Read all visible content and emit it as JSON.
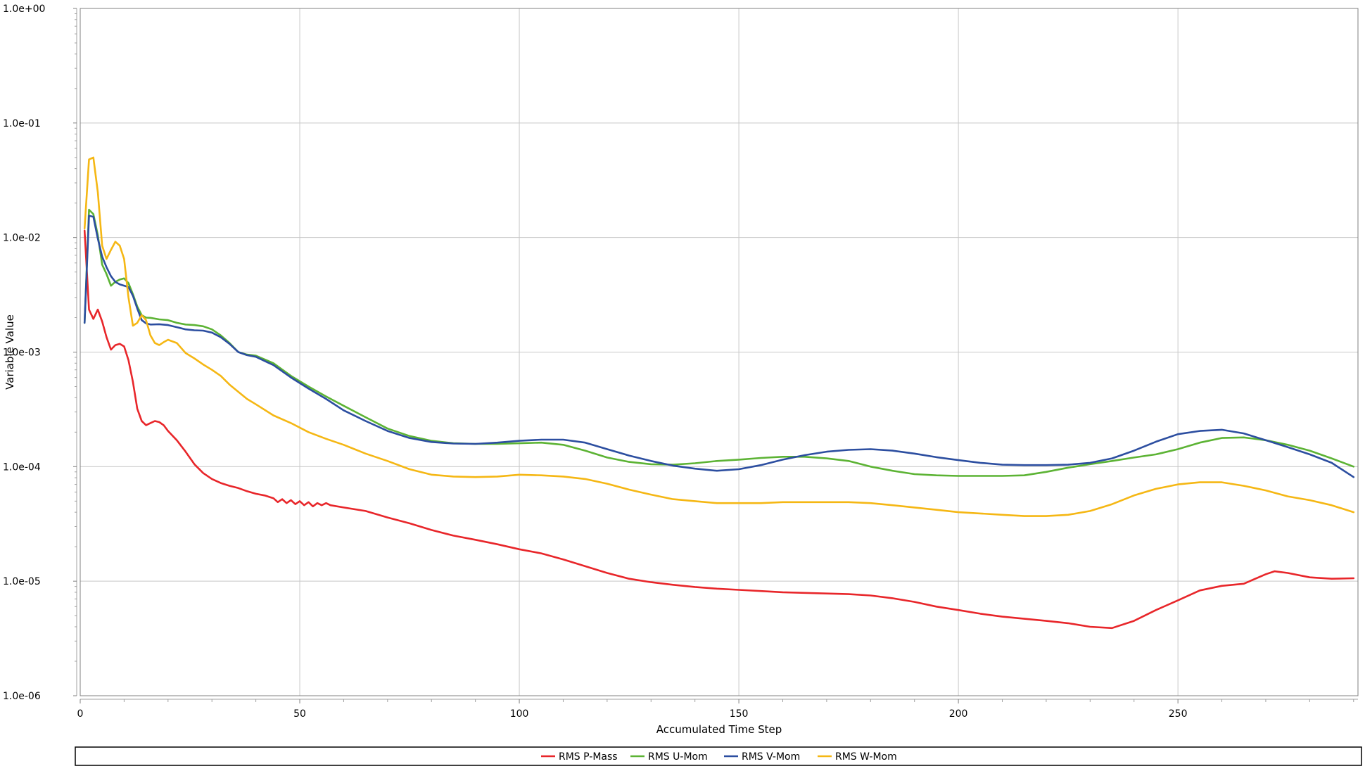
{
  "chart_data": {
    "type": "line",
    "xlabel": "Accumulated Time Step",
    "ylabel": "Variable Value",
    "y_scale": "log",
    "xlim": [
      0,
      291
    ],
    "ylim": [
      1e-06,
      1
    ],
    "x_ticks": [
      0,
      50,
      100,
      150,
      200,
      250
    ],
    "y_ticks": [
      1e-06,
      1e-05,
      0.0001,
      0.001,
      0.01,
      0.1,
      1
    ],
    "y_tick_labels": [
      "1.0e-06",
      "1.0e-05",
      "1.0e-04",
      "1.0e-03",
      "1.0e-02",
      "1.0e-01",
      "1.0e+00"
    ],
    "grid": true,
    "legend_position": "bottom",
    "series": [
      {
        "name": "RMS P-Mass",
        "color": "#e8262a",
        "x": [
          1,
          2,
          3,
          4,
          5,
          6,
          7,
          8,
          9,
          10,
          11,
          12,
          13,
          14,
          15,
          16,
          17,
          18,
          19,
          20,
          22,
          24,
          26,
          28,
          30,
          32,
          34,
          36,
          38,
          40,
          42,
          44,
          45,
          46,
          47,
          48,
          49,
          50,
          51,
          52,
          53,
          54,
          55,
          56,
          57,
          60,
          65,
          70,
          75,
          80,
          85,
          90,
          95,
          100,
          105,
          110,
          115,
          120,
          125,
          130,
          135,
          140,
          145,
          150,
          155,
          160,
          165,
          170,
          175,
          180,
          185,
          190,
          195,
          200,
          205,
          210,
          215,
          220,
          225,
          230,
          235,
          240,
          245,
          250,
          255,
          260,
          265,
          270,
          272,
          275,
          280,
          285,
          290
        ],
        "values": [
          0.0115,
          0.00235,
          0.00195,
          0.00235,
          0.00185,
          0.00135,
          0.00105,
          0.00115,
          0.00118,
          0.00112,
          0.00085,
          0.00055,
          0.00032,
          0.00025,
          0.00023,
          0.00024,
          0.00025,
          0.000245,
          0.00023,
          0.000205,
          0.00017,
          0.000135,
          0.000105,
          8.8e-05,
          7.8e-05,
          7.2e-05,
          6.8e-05,
          6.5e-05,
          6.1e-05,
          5.8e-05,
          5.6e-05,
          5.3e-05,
          4.9e-05,
          5.2e-05,
          4.8e-05,
          5.1e-05,
          4.7e-05,
          5e-05,
          4.6e-05,
          4.9e-05,
          4.5e-05,
          4.8e-05,
          4.6e-05,
          4.8e-05,
          4.6e-05,
          4.4e-05,
          4.1e-05,
          3.6e-05,
          3.2e-05,
          2.8e-05,
          2.5e-05,
          2.3e-05,
          2.1e-05,
          1.9e-05,
          1.75e-05,
          1.55e-05,
          1.35e-05,
          1.18e-05,
          1.05e-05,
          9.8e-06,
          9.3e-06,
          8.9e-06,
          8.6e-06,
          8.4e-06,
          8.2e-06,
          8e-06,
          7.9e-06,
          7.8e-06,
          7.7e-06,
          7.5e-06,
          7.1e-06,
          6.6e-06,
          6e-06,
          5.6e-06,
          5.2e-06,
          4.9e-06,
          4.7e-06,
          4.5e-06,
          4.3e-06,
          4e-06,
          3.9e-06,
          4.5e-06,
          5.6e-06,
          6.8e-06,
          8.3e-06,
          9.1e-06,
          9.5e-06,
          1.15e-05,
          1.22e-05,
          1.18e-05,
          1.08e-05,
          1.05e-05,
          1.06e-05
        ]
      },
      {
        "name": "RMS U-Mom",
        "color": "#5cb334",
        "x": [
          1,
          2,
          3,
          4,
          5,
          6,
          7,
          8,
          9,
          10,
          11,
          12,
          13,
          14,
          15,
          16,
          18,
          20,
          22,
          24,
          26,
          28,
          30,
          32,
          34,
          36,
          38,
          40,
          44,
          48,
          52,
          56,
          60,
          65,
          70,
          75,
          80,
          85,
          90,
          95,
          100,
          105,
          110,
          115,
          120,
          125,
          130,
          135,
          140,
          145,
          150,
          155,
          160,
          165,
          170,
          175,
          180,
          185,
          190,
          195,
          200,
          205,
          210,
          215,
          220,
          225,
          230,
          235,
          240,
          245,
          250,
          255,
          260,
          265,
          270,
          275,
          280,
          285,
          290
        ],
        "values": [
          0.0018,
          0.0175,
          0.016,
          0.0105,
          0.0058,
          0.0048,
          0.0038,
          0.0041,
          0.0043,
          0.0044,
          0.004,
          0.0032,
          0.0025,
          0.0021,
          0.002,
          0.00199,
          0.00193,
          0.0019,
          0.0018,
          0.00174,
          0.00172,
          0.00168,
          0.00158,
          0.0014,
          0.0012,
          0.001,
          0.00095,
          0.00093,
          0.0008,
          0.00062,
          0.0005,
          0.00041,
          0.00034,
          0.00027,
          0.000215,
          0.000185,
          0.000168,
          0.00016,
          0.000158,
          0.000158,
          0.00016,
          0.000162,
          0.000155,
          0.000138,
          0.00012,
          0.00011,
          0.000105,
          0.000104,
          0.000107,
          0.000112,
          0.000115,
          0.000119,
          0.000122,
          0.000122,
          0.000118,
          0.000112,
          0.0001,
          9.2e-05,
          8.6e-05,
          8.4e-05,
          8.3e-05,
          8.3e-05,
          8.3e-05,
          8.4e-05,
          9e-05,
          9.8e-05,
          0.000105,
          0.000112,
          0.00012,
          0.000128,
          0.000142,
          0.000162,
          0.000178,
          0.00018,
          0.00017,
          0.000155,
          0.000138,
          0.000118,
          0.0001
        ]
      },
      {
        "name": "RMS V-Mom",
        "color": "#2c4ea0",
        "x": [
          1,
          2,
          3,
          4,
          5,
          6,
          7,
          8,
          9,
          10,
          11,
          12,
          13,
          14,
          15,
          16,
          18,
          20,
          22,
          24,
          26,
          28,
          30,
          32,
          34,
          36,
          38,
          40,
          44,
          48,
          52,
          56,
          60,
          65,
          70,
          75,
          80,
          85,
          90,
          95,
          100,
          105,
          110,
          115,
          120,
          125,
          130,
          135,
          140,
          145,
          150,
          155,
          160,
          165,
          170,
          175,
          180,
          185,
          190,
          195,
          200,
          205,
          210,
          215,
          220,
          225,
          230,
          235,
          240,
          245,
          250,
          255,
          260,
          265,
          270,
          275,
          280,
          285,
          290
        ],
        "values": [
          0.0018,
          0.0155,
          0.0152,
          0.0098,
          0.0068,
          0.0055,
          0.0046,
          0.0041,
          0.0039,
          0.0038,
          0.0037,
          0.0031,
          0.0024,
          0.0019,
          0.00178,
          0.00174,
          0.00175,
          0.00172,
          0.00165,
          0.00158,
          0.00155,
          0.00154,
          0.00148,
          0.00135,
          0.00118,
          0.001,
          0.00094,
          0.00091,
          0.00077,
          0.0006,
          0.00048,
          0.00039,
          0.00031,
          0.00025,
          0.000205,
          0.000178,
          0.000164,
          0.000159,
          0.000158,
          0.000162,
          0.000168,
          0.000172,
          0.000172,
          0.000162,
          0.000142,
          0.000125,
          0.000112,
          0.000102,
          9.6e-05,
          9.2e-05,
          9.5e-05,
          0.000103,
          0.000115,
          0.000126,
          0.000135,
          0.00014,
          0.000142,
          0.000138,
          0.00013,
          0.000121,
          0.000114,
          0.000108,
          0.000104,
          0.000103,
          0.000103,
          0.000104,
          0.000108,
          0.000118,
          0.000138,
          0.000165,
          0.000192,
          0.000205,
          0.00021,
          0.000195,
          0.00017,
          0.000148,
          0.000128,
          0.000108,
          8.1e-05
        ]
      },
      {
        "name": "RMS W-Mom",
        "color": "#f5b714",
        "x": [
          1,
          2,
          3,
          4,
          5,
          6,
          7,
          8,
          9,
          10,
          11,
          12,
          13,
          14,
          15,
          16,
          17,
          18,
          19,
          20,
          22,
          24,
          26,
          28,
          30,
          32,
          34,
          36,
          38,
          40,
          44,
          48,
          52,
          56,
          60,
          65,
          70,
          75,
          80,
          85,
          90,
          95,
          100,
          105,
          110,
          115,
          120,
          125,
          130,
          135,
          140,
          145,
          150,
          155,
          160,
          165,
          170,
          175,
          180,
          185,
          190,
          195,
          200,
          205,
          210,
          215,
          220,
          225,
          230,
          235,
          240,
          245,
          250,
          255,
          260,
          265,
          270,
          275,
          280,
          285,
          290
        ],
        "values": [
          0.012,
          0.048,
          0.05,
          0.025,
          0.0085,
          0.0065,
          0.0078,
          0.0092,
          0.0085,
          0.0065,
          0.003,
          0.0017,
          0.0018,
          0.0021,
          0.0019,
          0.0014,
          0.0012,
          0.00115,
          0.00122,
          0.00128,
          0.0012,
          0.00098,
          0.00088,
          0.00078,
          0.0007,
          0.00062,
          0.00052,
          0.00045,
          0.00039,
          0.00035,
          0.00028,
          0.00024,
          0.0002,
          0.000175,
          0.000155,
          0.00013,
          0.000112,
          9.5e-05,
          8.5e-05,
          8.2e-05,
          8.1e-05,
          8.2e-05,
          8.5e-05,
          8.4e-05,
          8.2e-05,
          7.8e-05,
          7.1e-05,
          6.3e-05,
          5.7e-05,
          5.2e-05,
          5e-05,
          4.8e-05,
          4.8e-05,
          4.8e-05,
          4.9e-05,
          4.9e-05,
          4.9e-05,
          4.9e-05,
          4.8e-05,
          4.6e-05,
          4.4e-05,
          4.2e-05,
          4e-05,
          3.9e-05,
          3.8e-05,
          3.7e-05,
          3.7e-05,
          3.8e-05,
          4.1e-05,
          4.7e-05,
          5.6e-05,
          6.4e-05,
          7e-05,
          7.3e-05,
          7.3e-05,
          6.8e-05,
          6.2e-05,
          5.5e-05,
          5.1e-05,
          4.6e-05,
          4e-05
        ]
      }
    ]
  }
}
